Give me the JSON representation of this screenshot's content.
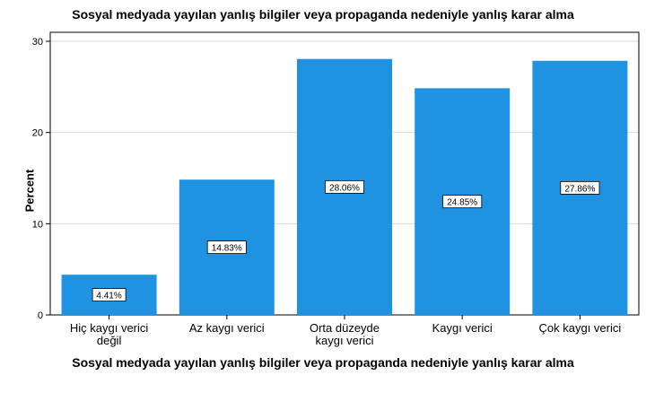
{
  "chart_data": {
    "type": "bar",
    "title": "Sosyal medyada yayılan yanlış bilgiler veya propaganda nedeniyle yanlış karar alma",
    "xlabel": "Sosyal medyada yayılan yanlış bilgiler veya propaganda nedeniyle yanlış karar alma",
    "ylabel": "Percent",
    "categories": [
      [
        "Hiç kaygı verici",
        "değil"
      ],
      [
        "Az kaygı verici"
      ],
      [
        "Orta düzeyde",
        "kaygı verici"
      ],
      [
        "Kaygı verici"
      ],
      [
        "Çok kaygı verici"
      ]
    ],
    "values": [
      4.41,
      14.83,
      28.06,
      24.85,
      27.86
    ],
    "data_labels": [
      "4.41%",
      "14.83%",
      "28.06%",
      "24.85%",
      "27.86%"
    ],
    "ylim": [
      0,
      30
    ],
    "yticks": [
      0,
      10,
      20,
      30
    ],
    "grid": true,
    "legend": "none",
    "bar_color": "#1f92e2"
  }
}
